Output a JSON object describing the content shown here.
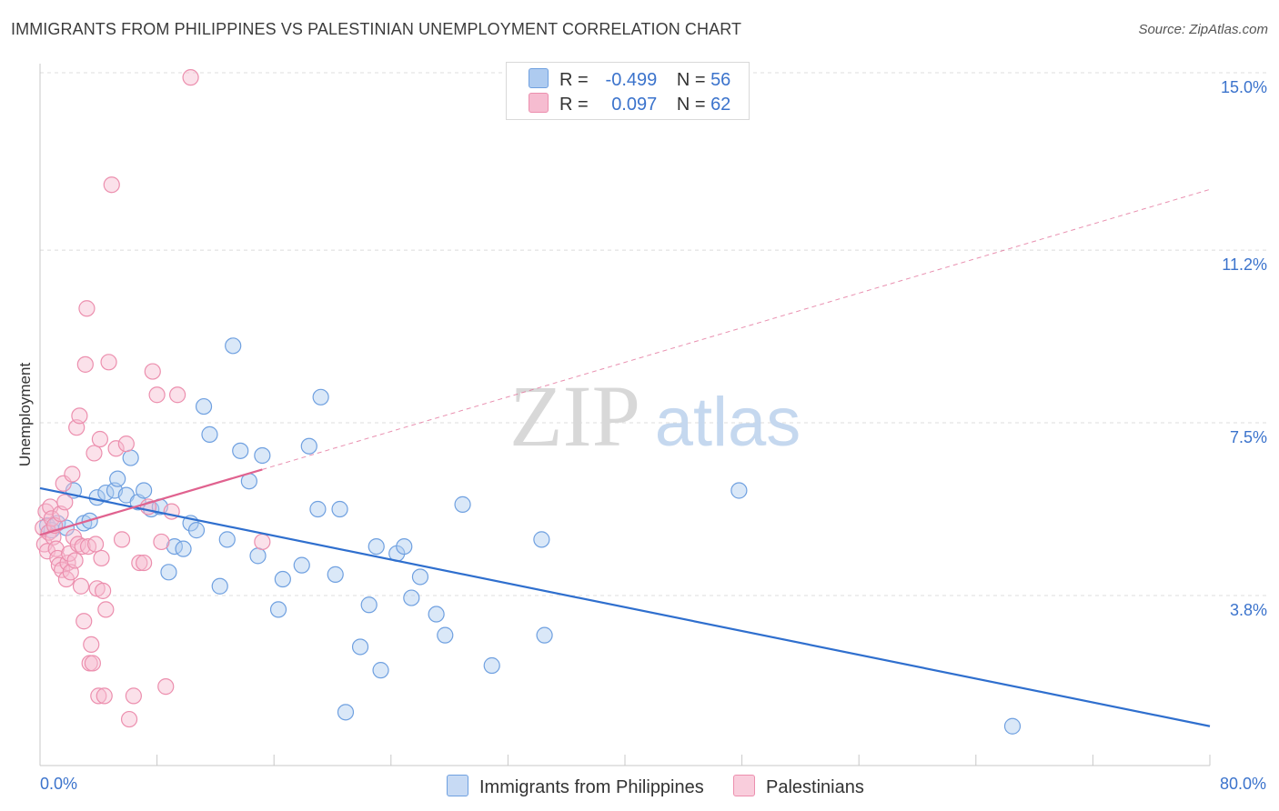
{
  "title": "IMMIGRANTS FROM PHILIPPINES VS PALESTINIAN UNEMPLOYMENT CORRELATION CHART",
  "source": "Source: ZipAtlas.com",
  "watermark": {
    "zip": "ZIP",
    "atlas": "atlas"
  },
  "legend": {
    "rows": [
      {
        "r_label": "R =",
        "r_value": "-0.499",
        "n_label": "N =",
        "n_value": "56",
        "color": "#aecbf0"
      },
      {
        "r_label": "R =",
        "r_value": "0.097",
        "n_label": "N =",
        "n_value": "62",
        "color": "#f6bcd0"
      }
    ]
  },
  "bottom_legend": {
    "series1": "Immigrants from Philippines",
    "series2": "Palestinians"
  },
  "chart_data": {
    "type": "scatter",
    "title": "IMMIGRANTS FROM PHILIPPINES VS PALESTINIAN UNEMPLOYMENT CORRELATION CHART",
    "xlabel": "",
    "ylabel": "Unemployment",
    "xlim": [
      0,
      80
    ],
    "ylim": [
      0.5,
      15.5
    ],
    "x_tick_labels": [
      "0.0%",
      "80.0%"
    ],
    "y_ticks": [
      3.8,
      7.5,
      11.2,
      15.0
    ],
    "y_tick_labels": [
      "3.8%",
      "7.5%",
      "11.2%",
      "15.0%"
    ],
    "grid": true,
    "series": [
      {
        "name": "Immigrants from Philippines",
        "color": "#6fa0e0",
        "fill": "rgba(174,203,240,0.45)",
        "trend_color": "#2f6fce",
        "trend": {
          "x0": 0,
          "y0": 6.1,
          "x1": 80,
          "y1": 1.0,
          "dashed_to": null
        },
        "points": [
          [
            0.5,
            5.3
          ],
          [
            0.8,
            5.2
          ],
          [
            1.2,
            5.35
          ],
          [
            1.8,
            5.25
          ],
          [
            2.3,
            6.05
          ],
          [
            3.0,
            5.35
          ],
          [
            3.4,
            5.4
          ],
          [
            3.9,
            5.9
          ],
          [
            4.5,
            6.0
          ],
          [
            5.1,
            6.05
          ],
          [
            5.3,
            6.3
          ],
          [
            5.9,
            5.95
          ],
          [
            6.2,
            6.75
          ],
          [
            6.7,
            5.8
          ],
          [
            7.1,
            6.05
          ],
          [
            7.6,
            5.65
          ],
          [
            8.2,
            5.7
          ],
          [
            8.8,
            4.3
          ],
          [
            9.2,
            4.85
          ],
          [
            9.8,
            4.8
          ],
          [
            10.3,
            5.35
          ],
          [
            10.7,
            5.2
          ],
          [
            11.2,
            7.85
          ],
          [
            11.6,
            7.25
          ],
          [
            12.3,
            4.0
          ],
          [
            12.8,
            5.0
          ],
          [
            13.2,
            9.15
          ],
          [
            13.7,
            6.9
          ],
          [
            14.3,
            6.25
          ],
          [
            14.9,
            4.65
          ],
          [
            15.2,
            6.8
          ],
          [
            16.3,
            3.5
          ],
          [
            16.6,
            4.15
          ],
          [
            17.9,
            4.45
          ],
          [
            18.4,
            7.0
          ],
          [
            19.0,
            5.65
          ],
          [
            19.2,
            8.05
          ],
          [
            20.2,
            4.25
          ],
          [
            20.5,
            5.65
          ],
          [
            20.9,
            1.3
          ],
          [
            21.9,
            2.7
          ],
          [
            22.5,
            3.6
          ],
          [
            23.0,
            4.85
          ],
          [
            23.3,
            2.2
          ],
          [
            24.4,
            4.7
          ],
          [
            24.9,
            4.85
          ],
          [
            25.4,
            3.75
          ],
          [
            26.0,
            4.2
          ],
          [
            27.1,
            3.4
          ],
          [
            27.7,
            2.95
          ],
          [
            28.9,
            5.75
          ],
          [
            30.9,
            2.3
          ],
          [
            34.3,
            5.0
          ],
          [
            34.5,
            2.95
          ],
          [
            47.8,
            6.05
          ],
          [
            66.5,
            1.0
          ]
        ]
      },
      {
        "name": "Palestinians",
        "color": "#ec8fae",
        "fill": "rgba(246,188,208,0.45)",
        "trend_color": "#e0628f",
        "trend": {
          "x0": 0,
          "y0": 5.1,
          "x1": 15.2,
          "y1": 6.5,
          "dashed_to": {
            "x": 80,
            "y": 12.5
          }
        },
        "points": [
          [
            0.2,
            5.25
          ],
          [
            0.3,
            4.9
          ],
          [
            0.4,
            5.6
          ],
          [
            0.5,
            4.75
          ],
          [
            0.6,
            5.15
          ],
          [
            0.7,
            5.7
          ],
          [
            0.8,
            5.45
          ],
          [
            0.9,
            5.05
          ],
          [
            1.0,
            5.3
          ],
          [
            1.1,
            4.8
          ],
          [
            1.2,
            4.6
          ],
          [
            1.3,
            4.45
          ],
          [
            1.4,
            5.55
          ],
          [
            1.5,
            4.35
          ],
          [
            1.6,
            6.2
          ],
          [
            1.7,
            5.8
          ],
          [
            1.8,
            4.15
          ],
          [
            1.9,
            4.5
          ],
          [
            2.0,
            4.7
          ],
          [
            2.1,
            4.3
          ],
          [
            2.2,
            6.4
          ],
          [
            2.3,
            5.05
          ],
          [
            2.4,
            4.55
          ],
          [
            2.5,
            7.4
          ],
          [
            2.6,
            4.9
          ],
          [
            2.7,
            7.65
          ],
          [
            2.8,
            4.0
          ],
          [
            2.9,
            4.85
          ],
          [
            3.0,
            3.25
          ],
          [
            3.1,
            8.75
          ],
          [
            3.2,
            9.95
          ],
          [
            3.3,
            4.85
          ],
          [
            3.4,
            2.35
          ],
          [
            3.5,
            2.75
          ],
          [
            3.6,
            2.35
          ],
          [
            3.7,
            6.85
          ],
          [
            3.8,
            4.9
          ],
          [
            3.9,
            3.95
          ],
          [
            4.0,
            1.65
          ],
          [
            4.1,
            7.15
          ],
          [
            4.2,
            4.6
          ],
          [
            4.3,
            3.9
          ],
          [
            4.4,
            1.65
          ],
          [
            4.5,
            3.5
          ],
          [
            4.7,
            8.8
          ],
          [
            4.9,
            12.6
          ],
          [
            5.2,
            6.95
          ],
          [
            5.6,
            5.0
          ],
          [
            5.9,
            7.05
          ],
          [
            6.1,
            1.15
          ],
          [
            6.4,
            1.65
          ],
          [
            6.8,
            4.5
          ],
          [
            7.1,
            4.5
          ],
          [
            7.4,
            5.7
          ],
          [
            7.7,
            8.6
          ],
          [
            8.0,
            8.1
          ],
          [
            8.3,
            4.95
          ],
          [
            8.6,
            1.85
          ],
          [
            9.0,
            5.6
          ],
          [
            9.4,
            8.1
          ],
          [
            10.3,
            14.9
          ],
          [
            15.2,
            4.95
          ]
        ]
      }
    ]
  }
}
